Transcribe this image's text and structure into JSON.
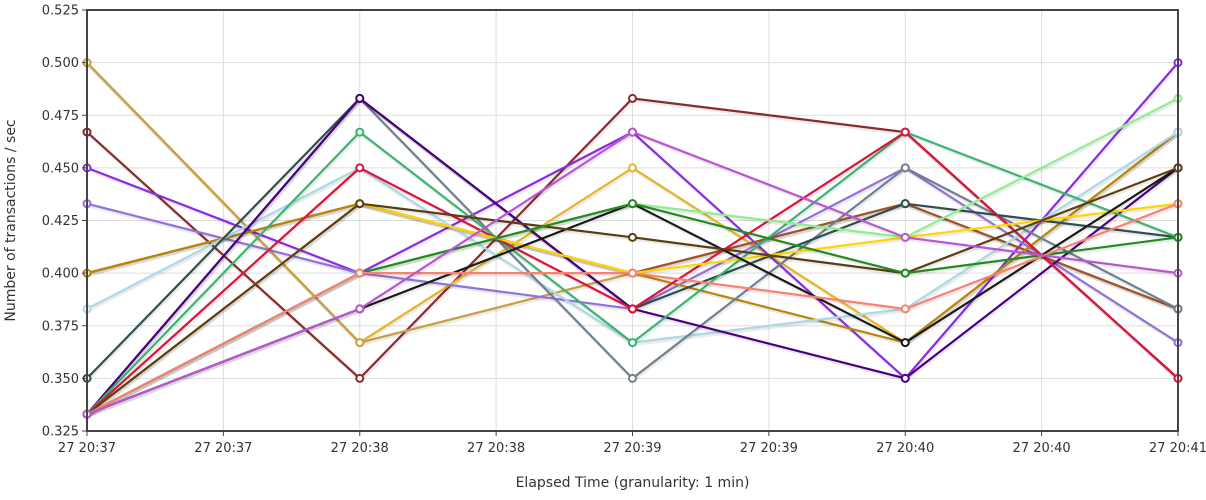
{
  "chart_data": {
    "type": "line",
    "xlabel": "Elapsed Time (granularity: 1 min)",
    "ylabel": "Number of transactions / sec",
    "ylim": [
      0.325,
      0.525
    ],
    "yticks": [
      "0.325",
      "0.350",
      "0.375",
      "0.400",
      "0.425",
      "0.450",
      "0.475",
      "0.500",
      "0.525"
    ],
    "x_ticks": [
      "27 20:37",
      "27 20:37",
      "27 20:38",
      "27 20:38",
      "27 20:39",
      "27 20:39",
      "27 20:40",
      "27 20:40",
      "27 20:41"
    ],
    "x_points": [
      "27 20:37",
      "27 20:38",
      "27 20:39",
      "27 20:40",
      "27 20:41"
    ],
    "grid": true,
    "legend": "none",
    "series": [
      {
        "color": "#8b2a2a",
        "values": [
          0.467,
          0.35,
          0.483,
          0.467,
          0.35
        ]
      },
      {
        "color": "#e6b422",
        "values": [
          0.5,
          0.367,
          0.45,
          0.367,
          0.467
        ]
      },
      {
        "color": "#c8a040",
        "values": [
          0.5,
          0.367,
          0.4,
          0.433,
          0.383
        ]
      },
      {
        "color": "#8a2be2",
        "values": [
          0.45,
          0.4,
          0.467,
          0.35,
          0.5
        ]
      },
      {
        "color": "#9370db",
        "values": [
          0.433,
          0.4,
          0.383,
          0.45,
          0.367
        ]
      },
      {
        "color": "#a0522d",
        "values": [
          0.4,
          0.433,
          0.4,
          0.433,
          0.383
        ]
      },
      {
        "color": "#b8860b",
        "values": [
          0.4,
          0.433,
          0.4,
          0.367,
          0.467
        ]
      },
      {
        "color": "#add8e6",
        "values": [
          0.383,
          0.45,
          0.367,
          0.383,
          0.467
        ]
      },
      {
        "color": "#708090",
        "values": [
          0.333,
          0.483,
          0.35,
          0.45,
          0.383
        ]
      },
      {
        "color": "#2f4f4f",
        "values": [
          0.35,
          0.483,
          0.383,
          0.433,
          0.417
        ]
      },
      {
        "color": "#4b0082",
        "values": [
          0.333,
          0.483,
          0.383,
          0.35,
          0.45
        ]
      },
      {
        "color": "#3cb371",
        "values": [
          0.333,
          0.467,
          0.367,
          0.467,
          0.417
        ]
      },
      {
        "color": "#dc143c",
        "values": [
          0.333,
          0.45,
          0.383,
          0.467,
          0.35
        ]
      },
      {
        "color": "#ffd700",
        "values": [
          0.333,
          0.433,
          0.4,
          0.417,
          0.433
        ]
      },
      {
        "color": "#1a1a1a",
        "values": [
          0.333,
          0.383,
          0.433,
          0.367,
          0.45
        ]
      },
      {
        "color": "#90ee90",
        "values": [
          0.333,
          0.4,
          0.433,
          0.417,
          0.483
        ]
      },
      {
        "color": "#5c3d12",
        "values": [
          0.333,
          0.433,
          0.417,
          0.4,
          0.45
        ]
      },
      {
        "color": "#228b22",
        "values": [
          0.333,
          0.4,
          0.433,
          0.4,
          0.417
        ]
      },
      {
        "color": "#fa8072",
        "values": [
          0.333,
          0.4,
          0.4,
          0.383,
          0.433
        ]
      },
      {
        "color": "#ba55d3",
        "values": [
          0.333,
          0.383,
          0.467,
          0.417,
          0.4
        ]
      }
    ]
  }
}
